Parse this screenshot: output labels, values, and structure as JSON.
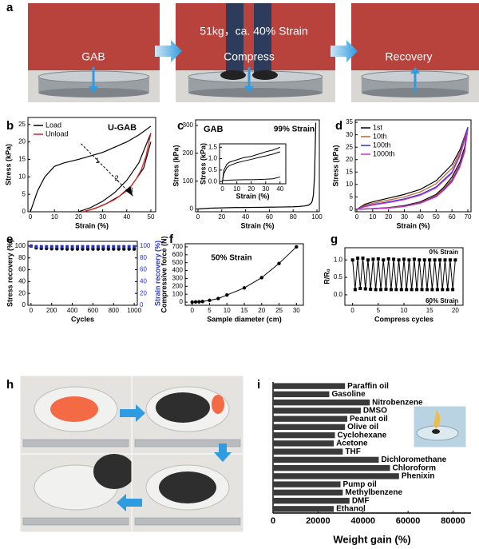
{
  "photos": [
    {
      "panel": "a",
      "labels": [
        "GAB",
        "51kg，ca. 40% Strain",
        "Compress",
        "Recovery"
      ]
    },
    {
      "panel": "h"
    }
  ],
  "chart_data": [
    {
      "panel": "b",
      "type": "line",
      "xlabel": "Strain (%)",
      "ylabel": "Stress (kPa)",
      "xlim": [
        -1,
        52
      ],
      "ylim": [
        0,
        27
      ],
      "xticks": [
        0,
        10,
        20,
        30,
        40,
        50
      ],
      "yticks": [
        0,
        5,
        10,
        15,
        20,
        25
      ],
      "legend": "upper left",
      "annotations": [
        "U-GAB",
        "1",
        "2",
        "3"
      ],
      "series": [
        {
          "name": "Load",
          "color": "#000000",
          "x": [
            0,
            3,
            6,
            10,
            14,
            20,
            25,
            30,
            35,
            40,
            45,
            50,
            null,
            20,
            25,
            30,
            35,
            40,
            45,
            50,
            null,
            22,
            27,
            32,
            37,
            42,
            47,
            50
          ],
          "y": [
            0,
            6,
            10,
            13,
            14,
            15,
            16,
            17,
            18.5,
            20,
            22,
            24.5,
            null,
            0,
            1.2,
            3,
            5.5,
            9,
            14,
            22.5,
            null,
            0,
            1,
            2.5,
            4.5,
            7.5,
            12.5,
            20
          ]
        },
        {
          "name": "Unload",
          "color": "#e02020",
          "x": [
            50,
            48,
            46,
            44,
            42,
            40,
            35,
            30,
            25,
            22
          ],
          "y": [
            22.5,
            16,
            12,
            9.5,
            7.5,
            6,
            3.5,
            1.8,
            0.6,
            0
          ]
        }
      ]
    },
    {
      "panel": "c",
      "type": "line",
      "xlabel": "Strain (%)",
      "ylabel": "Stress (kPa)",
      "xlim": [
        -2,
        102
      ],
      "ylim": [
        -10,
        320
      ],
      "xticks": [
        0,
        20,
        40,
        60,
        80,
        100
      ],
      "yticks": [
        0,
        100,
        200,
        300
      ],
      "annotations": [
        "GAB",
        "99% Strain"
      ],
      "series": [
        {
          "color": "#000000",
          "x": [
            0,
            10,
            20,
            30,
            40,
            50,
            60,
            70,
            80,
            85,
            90,
            93,
            95,
            96,
            97,
            98,
            99
          ],
          "y": [
            0,
            3,
            4,
            5,
            5.5,
            6,
            6.5,
            7,
            8,
            9,
            11,
            14,
            20,
            28,
            50,
            120,
            310
          ]
        }
      ],
      "inset": {
        "type": "line",
        "xlabel": "Strain (%)",
        "ylabel": "Stress (kPa)",
        "xlim": [
          -2,
          44
        ],
        "ylim": [
          -0.1,
          1.65
        ],
        "xticks": [
          0,
          10,
          20,
          30,
          40
        ],
        "yticks": [
          {
            "value": 0,
            "label": "0.0"
          },
          {
            "value": 0.5,
            "label": "0.5"
          },
          {
            "value": 1,
            "label": "1.0"
          },
          {
            "value": 1.5,
            "label": "1.5"
          }
        ],
        "series": [
          {
            "color": "#000000",
            "x": [
              0,
              1,
              3,
              5,
              10,
              15,
              20,
              25,
              30,
              35,
              40
            ],
            "y": [
              0,
              0.5,
              0.75,
              0.85,
              0.95,
              1.05,
              1.1,
              1.2,
              1.3,
              1.38,
              1.5
            ]
          },
          {
            "color": "#000000",
            "x": [
              0,
              1,
              3,
              5,
              10,
              15,
              20,
              25,
              30,
              35,
              40
            ],
            "y": [
              0,
              0.35,
              0.6,
              0.7,
              0.82,
              0.9,
              0.97,
              1.05,
              1.12,
              1.2,
              1.3
            ]
          },
          {
            "color": "#000000",
            "x": [
              0,
              1,
              3,
              5,
              10,
              15,
              20,
              25,
              30,
              35,
              40
            ],
            "y": [
              0.05,
              0.05,
              0.05,
              0.06,
              0.07,
              0.08,
              0.08,
              0.09,
              0.1,
              0.12,
              0.2
            ]
          }
        ]
      }
    },
    {
      "panel": "d",
      "type": "line",
      "xlabel": "Strain (%)",
      "ylabel": "Stress (kPa)",
      "xlim": [
        -1,
        72
      ],
      "ylim": [
        -1,
        36
      ],
      "xticks": [
        0,
        10,
        20,
        30,
        40,
        50,
        60,
        70
      ],
      "yticks": [
        0,
        5,
        10,
        15,
        20,
        25,
        30,
        35
      ],
      "legend": "upper left",
      "series": [
        {
          "name": "1st",
          "color": "#000000",
          "x": [
            0,
            5,
            10,
            20,
            30,
            40,
            50,
            60,
            65,
            70,
            68,
            65,
            60,
            55,
            50,
            40,
            30,
            20,
            10,
            0
          ],
          "y": [
            0,
            2,
            3,
            4.5,
            6,
            8,
            11.5,
            18,
            24,
            33,
            25,
            19,
            13,
            9,
            6,
            3,
            1.5,
            0.7,
            0.3,
            0
          ]
        },
        {
          "name": "10th",
          "color": "#c0622b",
          "x": [
            0,
            5,
            10,
            20,
            30,
            40,
            50,
            60,
            65,
            70,
            68,
            65,
            60,
            55,
            50,
            40,
            30,
            20,
            10,
            0
          ],
          "y": [
            0,
            1.6,
            2.4,
            3.7,
            5,
            7,
            10.3,
            16.5,
            23,
            33,
            24,
            18,
            12,
            8.5,
            5.5,
            2.7,
            1.3,
            0.6,
            0.2,
            0
          ]
        },
        {
          "name": "100th",
          "color": "#2a35c8",
          "x": [
            0,
            5,
            10,
            20,
            30,
            40,
            50,
            60,
            65,
            70,
            68,
            65,
            60,
            55,
            50,
            40,
            30,
            20,
            10,
            0
          ],
          "y": [
            0,
            1.2,
            1.9,
            3,
            4.2,
            6,
            9,
            15,
            22,
            33,
            23.5,
            17.5,
            11.5,
            8,
            5.2,
            2.5,
            1.2,
            0.5,
            0.2,
            0
          ]
        },
        {
          "name": "1000th",
          "color": "#cc33cc",
          "x": [
            0,
            5,
            10,
            20,
            30,
            40,
            50,
            60,
            65,
            70,
            68,
            65,
            60,
            55,
            50,
            40,
            30,
            20,
            10,
            0
          ],
          "y": [
            0,
            1,
            1.7,
            2.7,
            3.9,
            5.6,
            8.6,
            14.5,
            21.5,
            32,
            23,
            17,
            11,
            7.7,
            5,
            2.4,
            1.1,
            0.5,
            0.2,
            0
          ]
        }
      ]
    },
    {
      "panel": "e",
      "type": "scatter",
      "xlabel": "Cycles",
      "ylabel": "Stress recovery (%)",
      "y2label": "Strain recovery (%)",
      "y2color": "#2a35c8",
      "xlim": [
        -30,
        1030
      ],
      "ylim": [
        0,
        108
      ],
      "y2lim": [
        0,
        108
      ],
      "xticks": [
        0,
        200,
        400,
        600,
        800,
        1000
      ],
      "yticks": [
        0,
        20,
        40,
        60,
        80,
        100
      ],
      "y2ticks": [
        0,
        20,
        40,
        60,
        80,
        100
      ],
      "series": [
        {
          "marker": "circle",
          "color": "#000000",
          "x": [
            0,
            50,
            100,
            150,
            200,
            250,
            300,
            350,
            400,
            450,
            500,
            550,
            600,
            650,
            700,
            750,
            800,
            850,
            900,
            950,
            1000
          ],
          "y": [
            100,
            97,
            96,
            96,
            95.5,
            95.5,
            95.5,
            95,
            95,
            95,
            95,
            95,
            95,
            95,
            95,
            95,
            95,
            95,
            95,
            95,
            95
          ]
        },
        {
          "marker": "square",
          "color": "#2a35c8",
          "axis": "y2",
          "x": [
            0,
            50,
            100,
            150,
            200,
            250,
            300,
            350,
            400,
            450,
            500,
            550,
            600,
            650,
            700,
            750,
            800,
            850,
            900,
            950,
            1000
          ],
          "y": [
            100,
            99,
            99,
            99,
            99,
            99,
            99,
            99,
            99,
            99,
            99,
            99,
            99,
            99,
            99,
            99,
            99,
            99,
            99,
            99,
            99
          ]
        }
      ]
    },
    {
      "panel": "f",
      "type": "scatter",
      "xlabel": "Sample diameter (cm)",
      "ylabel": "Compressive force (N)",
      "xlim": [
        -2,
        32
      ],
      "ylim": [
        -40,
        740
      ],
      "xticks": [
        0,
        5,
        10,
        15,
        20,
        25,
        30
      ],
      "yticks": [
        0,
        100,
        200,
        300,
        400,
        500,
        600,
        700
      ],
      "annotations": [
        "50% Strain"
      ],
      "connect": true,
      "series": [
        {
          "marker": "circle",
          "color": "#000000",
          "x": [
            0,
            1,
            2,
            3,
            5,
            7.5,
            10,
            15,
            20,
            25,
            30
          ],
          "y": [
            0,
            2,
            4,
            8,
            22,
            45,
            90,
            180,
            310,
            490,
            700
          ]
        }
      ]
    },
    {
      "panel": "g",
      "type": "scatter",
      "xlabel": "Compress cycles",
      "ylabel": "R/R₀",
      "xlim": [
        -1.5,
        21.5
      ],
      "ylim": [
        -0.3,
        1.35
      ],
      "xticks": [
        0,
        5,
        10,
        15,
        20
      ],
      "yticks": [
        {
          "value": 0,
          "label": "0.0"
        },
        {
          "value": 0.5,
          "label": "0.5"
        },
        {
          "value": 1,
          "label": "1.0"
        }
      ],
      "annotations": [
        "0% Strain",
        "60% Strain"
      ],
      "connect": true,
      "series": [
        {
          "marker": "square",
          "color": "#000000",
          "x": [
            0,
            0.5,
            1,
            1.5,
            2,
            2.5,
            3,
            3.5,
            4,
            4.5,
            5,
            5.5,
            6,
            6.5,
            7,
            7.5,
            8,
            8.5,
            9,
            9.5,
            10,
            10.5,
            11,
            11.5,
            12,
            12.5,
            13,
            13.5,
            14,
            14.5,
            15,
            15.5,
            16,
            16.5,
            17,
            17.5,
            18,
            18.5,
            19,
            19.5,
            20
          ],
          "y": [
            1.0,
            0.15,
            1.05,
            0.18,
            1.05,
            0.17,
            1.0,
            0.16,
            1.02,
            0.15,
            1.03,
            0.15,
            1.0,
            0.16,
            1.03,
            0.15,
            1.02,
            0.15,
            1.0,
            0.15,
            1.02,
            0.15,
            1.0,
            0.15,
            1.02,
            0.15,
            1.0,
            0.15,
            1.0,
            0.15,
            1.0,
            0.15,
            1.0,
            0.15,
            1.0,
            0.15,
            1.0,
            0.15,
            1.0,
            0.15,
            1.0
          ]
        }
      ]
    },
    {
      "panel": "i",
      "type": "barh",
      "xlabel": "Weight gain (%)",
      "color": "#3a3a3a",
      "xlim": [
        0,
        88000
      ],
      "xticks": [
        0,
        20000,
        40000,
        60000,
        80000
      ],
      "categories": [
        "Paraffin oil",
        "Gasoline",
        "Nitrobenzene",
        "DMSO",
        "Peanut oil",
        "Olive oil",
        "Cyclohexane",
        "Acetone",
        "THF",
        "Dichloromethane",
        "Chloroform",
        "Phenixin",
        "Pump oil",
        "Methylbenzene",
        "DMF",
        "Ethanol"
      ],
      "values": [
        32000,
        25000,
        43000,
        39000,
        33000,
        32000,
        27500,
        27000,
        31000,
        47000,
        52000,
        56000,
        30000,
        31000,
        34000,
        27000
      ]
    }
  ]
}
